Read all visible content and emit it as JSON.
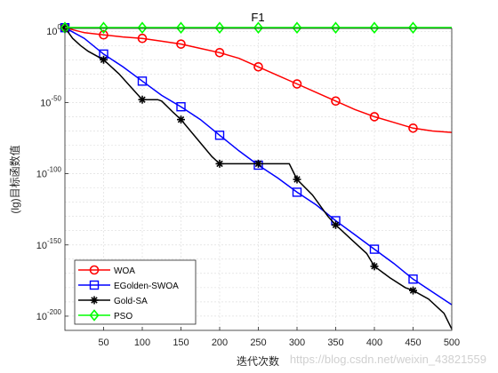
{
  "chart_data": {
    "type": "line",
    "title": "F1",
    "xlabel": "迭代次数",
    "ylabel": "(lg)目标函数值",
    "xlim": [
      0,
      500
    ],
    "ylim_log10": [
      -210,
      2
    ],
    "y_scale": "log",
    "grid": true,
    "legend_position": "bottom-left",
    "x_ticks": [
      50,
      100,
      150,
      200,
      250,
      300,
      350,
      400,
      450,
      500
    ],
    "y_ticks": [
      {
        "base": "10",
        "exp": "0",
        "log10": 0
      },
      {
        "base": "10",
        "exp": "-50",
        "log10": -50
      },
      {
        "base": "10",
        "exp": "-100",
        "log10": -100
      },
      {
        "base": "10",
        "exp": "-150",
        "log10": -150
      },
      {
        "base": "10",
        "exp": "-200",
        "log10": -200
      }
    ],
    "series": [
      {
        "name": "WOA",
        "color": "#ff0000",
        "marker": "circle",
        "x": [
          0,
          25,
          50,
          75,
          100,
          125,
          150,
          175,
          200,
          225,
          250,
          275,
          300,
          325,
          350,
          375,
          400,
          425,
          450,
          475,
          500
        ],
        "y_log10": [
          2.5,
          -1,
          -2.5,
          -4,
          -5,
          -7,
          -9,
          -12,
          -15,
          -19,
          -25,
          -31,
          -37,
          -43,
          -49,
          -55,
          -60,
          -64,
          -68,
          -70,
          -71
        ],
        "marker_x": [
          0,
          50,
          100,
          150,
          200,
          250,
          300,
          350,
          400,
          450
        ]
      },
      {
        "name": "EGolden-SWOA",
        "color": "#0000ff",
        "marker": "square",
        "x": [
          0,
          25,
          50,
          75,
          100,
          125,
          150,
          175,
          200,
          225,
          250,
          275,
          300,
          325,
          350,
          375,
          400,
          425,
          450,
          475,
          500
        ],
        "y_log10": [
          2.5,
          -5,
          -16,
          -25,
          -35,
          -45,
          -53,
          -62,
          -73,
          -84,
          -94,
          -103,
          -113,
          -122,
          -133,
          -143,
          -153,
          -163,
          -174,
          -183,
          -192
        ],
        "marker_x": [
          0,
          50,
          100,
          150,
          200,
          250,
          300,
          350,
          400,
          450
        ]
      },
      {
        "name": "Gold-SA",
        "color": "#000000",
        "marker": "asterisk",
        "x": [
          0,
          10,
          20,
          30,
          50,
          70,
          90,
          100,
          120,
          125,
          140,
          150,
          170,
          190,
          200,
          230,
          250,
          270,
          290,
          300,
          320,
          340,
          350,
          370,
          390,
          400,
          420,
          440,
          450,
          470,
          490,
          500
        ],
        "y_log10": [
          2.5,
          -5,
          -10,
          -14,
          -20,
          -30,
          -42,
          -48,
          -48,
          -49,
          -57,
          -62,
          -75,
          -88,
          -93,
          -93,
          -93,
          -93,
          -93,
          -104,
          -115,
          -130,
          -136,
          -146,
          -156,
          -165,
          -173,
          -180,
          -182,
          -188,
          -198,
          -209
        ],
        "marker_x": [
          0,
          50,
          100,
          150,
          200,
          250,
          300,
          350,
          400,
          450
        ]
      },
      {
        "name": "PSO",
        "color": "#00ff00",
        "marker": "diamond",
        "x": [
          0,
          500
        ],
        "y_log10": [
          2.5,
          2.5
        ],
        "marker_x": [
          0,
          50,
          100,
          150,
          200,
          250,
          300,
          350,
          400,
          450
        ]
      }
    ]
  },
  "watermark": "https://blog.csdn.net/weixin_43821559"
}
